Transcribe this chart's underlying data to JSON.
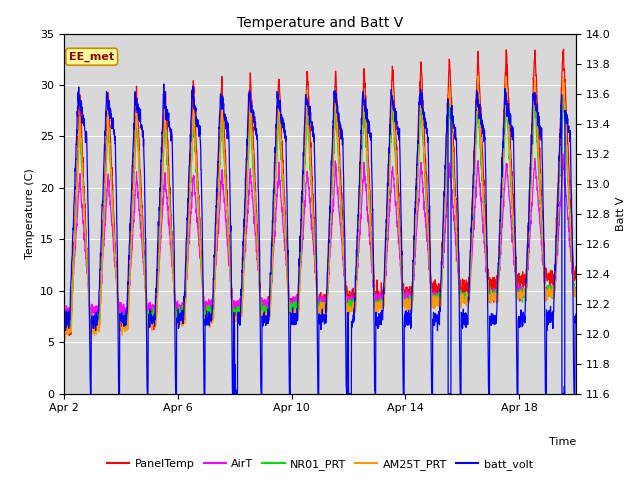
{
  "title": "Temperature and Batt V",
  "xlabel": "Time",
  "ylabel_left": "Temperature (C)",
  "ylabel_right": "Batt V",
  "ylim_left": [
    0,
    35
  ],
  "ylim_right": [
    11.6,
    14.0
  ],
  "x_ticks_labels": [
    "Apr 2",
    "Apr 6",
    "Apr 10",
    "Apr 14",
    "Apr 18"
  ],
  "x_ticks_pos": [
    0,
    4,
    8,
    12,
    16
  ],
  "y_ticks_left": [
    0,
    5,
    10,
    15,
    20,
    25,
    30,
    35
  ],
  "y_ticks_right": [
    11.6,
    11.8,
    12.0,
    12.2,
    12.4,
    12.6,
    12.8,
    13.0,
    13.2,
    13.4,
    13.6,
    13.8,
    14.0
  ],
  "series": {
    "PanelTemp": {
      "color": "#ff0000",
      "lw": 0.9
    },
    "AirT": {
      "color": "#ff00ff",
      "lw": 0.9
    },
    "NR01_PRT": {
      "color": "#00dd00",
      "lw": 0.9
    },
    "AM25T_PRT": {
      "color": "#ff9900",
      "lw": 0.9
    },
    "batt_volt": {
      "color": "#0000ff",
      "lw": 0.9
    }
  },
  "bg_color": "#d8d8d8",
  "grid_color": "#ffffff",
  "fig_bg_color": "#ffffff",
  "annotation_text": "EE_met",
  "annotation_facecolor": "#ffff99",
  "annotation_edgecolor": "#cc8800"
}
